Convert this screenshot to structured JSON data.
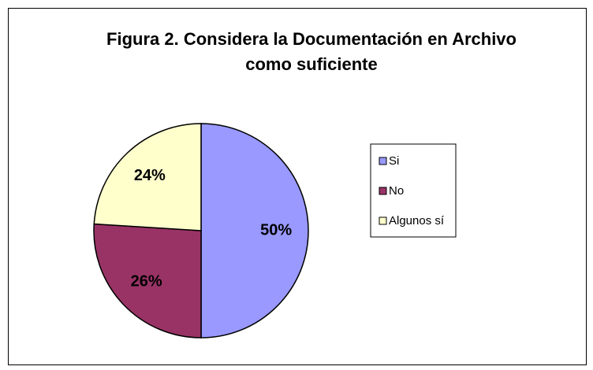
{
  "chart_data": {
    "type": "pie",
    "title": "Figura 2. Considera la Documentación en Archivo como suficiente",
    "categories": [
      "Si",
      "No",
      "Algunos sí"
    ],
    "values": [
      50,
      26,
      24
    ],
    "value_labels": [
      "50%",
      "26%",
      "24%"
    ],
    "colors": [
      "#9999ff",
      "#993366",
      "#ffffcc"
    ],
    "legend": "right"
  }
}
